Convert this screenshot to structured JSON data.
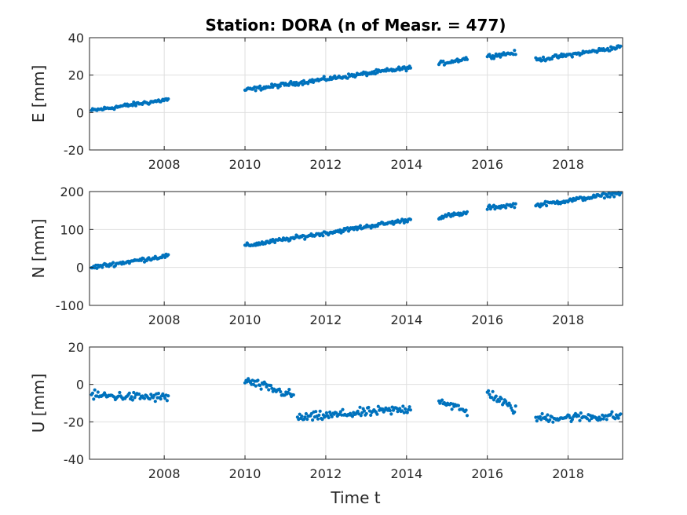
{
  "chart_data": [
    {
      "type": "scatter",
      "title": "Station: DORA (n of Measr. = 477)",
      "ylabel": "E [mm]",
      "xlabel": "",
      "xlim": [
        2006.15,
        2019.35
      ],
      "ylim": [
        -20,
        40
      ],
      "xticks": [
        2008,
        2010,
        2012,
        2014,
        2016,
        2018
      ],
      "yticks": [
        -20,
        0,
        20,
        40
      ],
      "grid": true,
      "color": "#0072BD",
      "series": [
        {
          "segments": [
            {
              "x": [
                2006.2,
                2008.1
              ],
              "y": [
                1,
                7
              ]
            },
            {
              "x": [
                2010.0,
                2014.1
              ],
              "y": [
                12,
                24
              ]
            },
            {
              "x": [
                2014.8,
                2015.5
              ],
              "y": [
                26,
                29
              ]
            },
            {
              "x": [
                2016.0,
                2016.7
              ],
              "y": [
                30,
                32
              ]
            },
            {
              "x": [
                2017.2,
                2019.3
              ],
              "y": [
                28,
                35
              ]
            }
          ]
        }
      ]
    },
    {
      "type": "scatter",
      "title": "",
      "ylabel": "N [mm]",
      "xlabel": "",
      "xlim": [
        2006.15,
        2019.35
      ],
      "ylim": [
        -100,
        200
      ],
      "xticks": [
        2008,
        2010,
        2012,
        2014,
        2016,
        2018
      ],
      "yticks": [
        -100,
        0,
        100,
        200
      ],
      "grid": true,
      "color": "#0072BD",
      "series": [
        {
          "segments": [
            {
              "x": [
                2006.2,
                2008.1
              ],
              "y": [
                0,
                31
              ]
            },
            {
              "x": [
                2010.0,
                2014.1
              ],
              "y": [
                57,
                126
              ]
            },
            {
              "x": [
                2014.8,
                2015.5
              ],
              "y": [
                133,
                143
              ]
            },
            {
              "x": [
                2016.0,
                2016.7
              ],
              "y": [
                157,
                165
              ]
            },
            {
              "x": [
                2017.2,
                2019.3
              ],
              "y": [
                164,
                196
              ]
            }
          ]
        }
      ]
    },
    {
      "type": "scatter",
      "title": "",
      "ylabel": "U [mm]",
      "xlabel": "Time t",
      "xlim": [
        2006.15,
        2019.35
      ],
      "ylim": [
        -40,
        20
      ],
      "xticks": [
        2008,
        2010,
        2012,
        2014,
        2016,
        2018
      ],
      "yticks": [
        -40,
        -20,
        0,
        20
      ],
      "grid": true,
      "color": "#0072BD",
      "series": [
        {
          "segments": [
            {
              "x": [
                2006.2,
                2008.1
              ],
              "y": [
                -6,
                -7
              ]
            },
            {
              "x": [
                2010.0,
                2011.2
              ],
              "y": [
                2,
                -6
              ]
            },
            {
              "x": [
                2011.3,
                2014.1
              ],
              "y": [
                -18,
                -13
              ]
            },
            {
              "x": [
                2014.8,
                2015.5
              ],
              "y": [
                -8,
                -15
              ]
            },
            {
              "x": [
                2016.0,
                2016.7
              ],
              "y": [
                -4,
                -14
              ]
            },
            {
              "x": [
                2017.2,
                2019.3
              ],
              "y": [
                -18,
                -17
              ]
            }
          ]
        }
      ]
    }
  ]
}
